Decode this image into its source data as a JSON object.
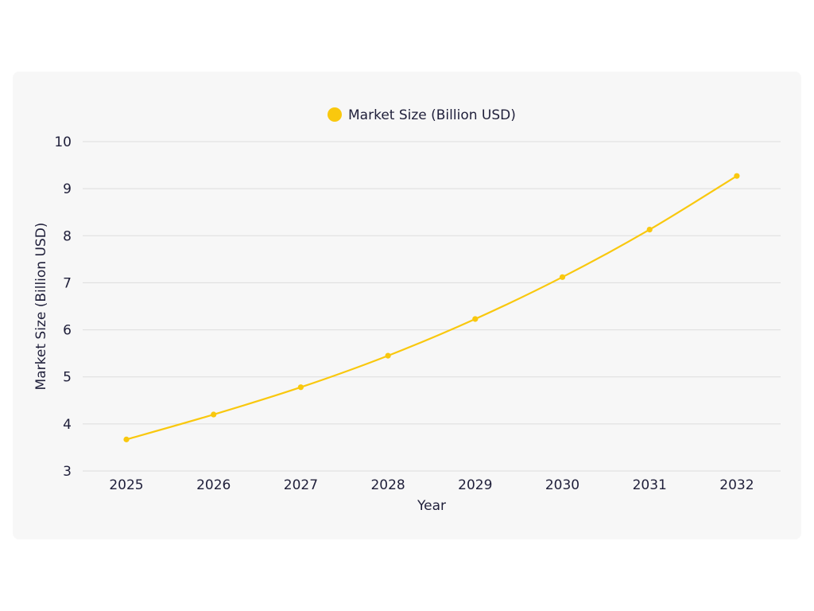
{
  "chart_data": {
    "type": "line",
    "x": [
      "2025",
      "2026",
      "2027",
      "2028",
      "2029",
      "2030",
      "2031",
      "2032"
    ],
    "series": [
      {
        "name": "Market Size (Billion USD)",
        "values": [
          3.67,
          4.2,
          4.78,
          5.45,
          6.23,
          7.12,
          8.13,
          9.27
        ],
        "color": "#f9c80e"
      }
    ],
    "xlabel": "Year",
    "ylabel": "Market Size (Billion USD)",
    "ylim": [
      3,
      10
    ],
    "yticks": [
      "3",
      "4",
      "5",
      "6",
      "7",
      "8",
      "9",
      "10"
    ],
    "grid": true,
    "legend": "top-center"
  }
}
